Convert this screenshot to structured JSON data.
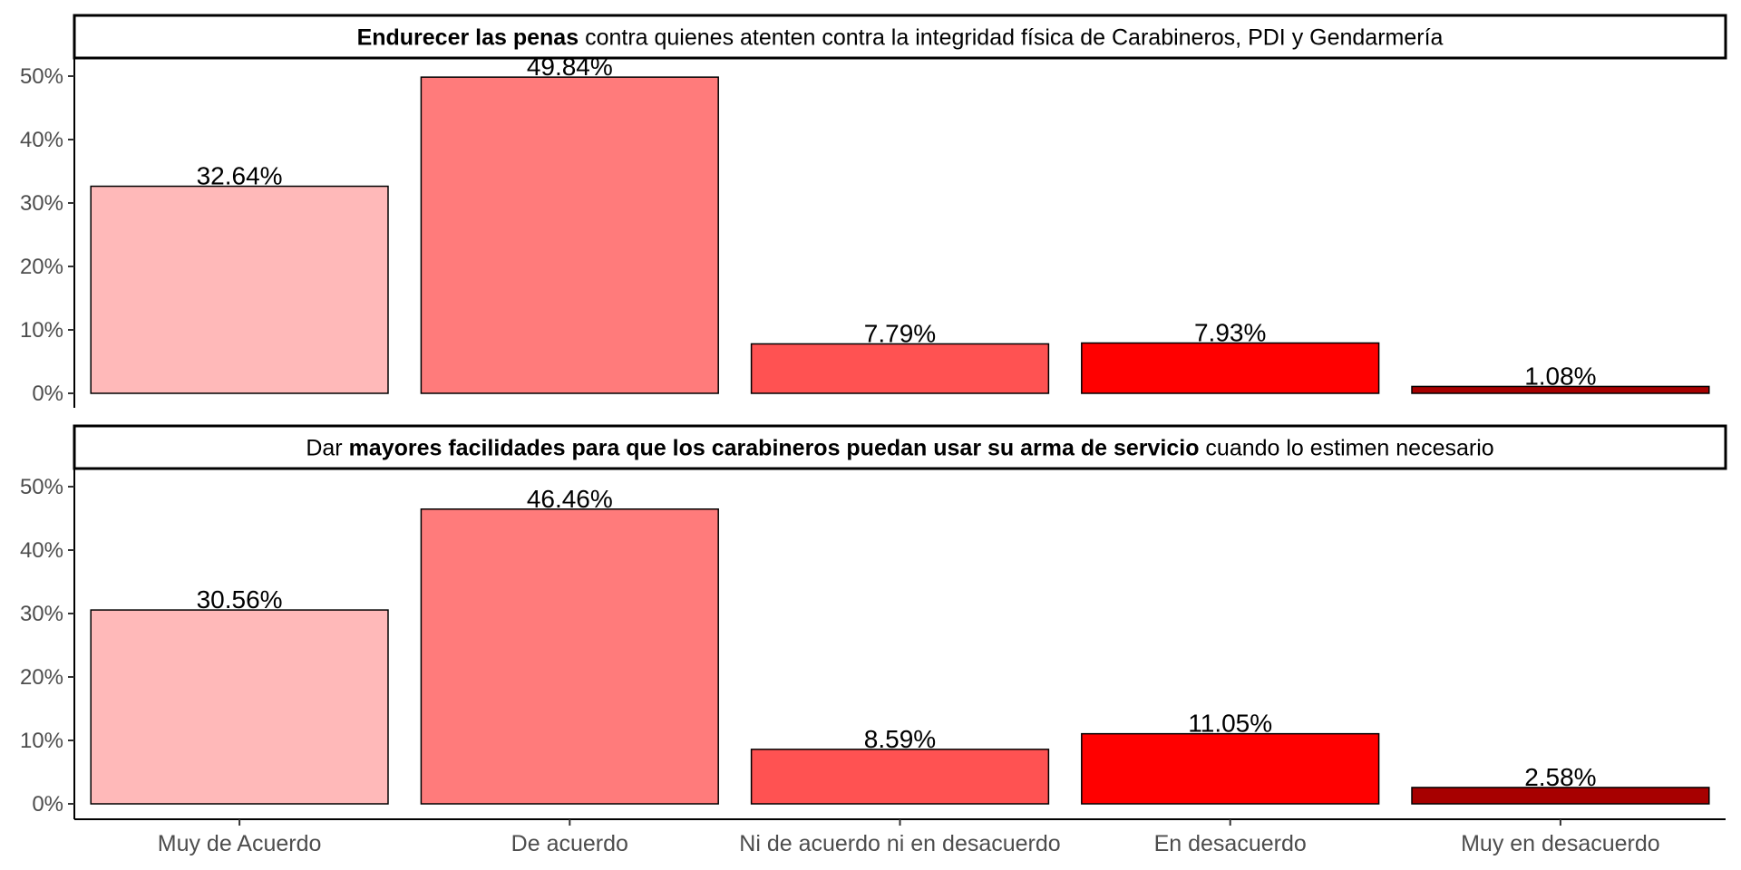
{
  "chart_data": {
    "type": "bar",
    "categories": [
      "Muy de Acuerdo",
      "De acuerdo",
      "Ni de acuerdo ni en desacuerdo",
      "En desacuerdo",
      "Muy en desacuerdo"
    ],
    "colors": [
      "#ffb9b9",
      "#ff7b7b",
      "#ff5252",
      "#ff0000",
      "#a70000"
    ],
    "ylim": [
      0,
      52
    ],
    "yticks": [
      0,
      10,
      20,
      30,
      40,
      50
    ],
    "ytick_labels": [
      "0%",
      "10%",
      "20%",
      "30%",
      "40%",
      "50%"
    ],
    "panels": [
      {
        "title_parts": [
          {
            "text": "Endurecer las penas",
            "bold": true
          },
          {
            "text": " contra quienes atenten contra la integridad física de Carabineros, PDI y Gendarmería",
            "bold": false
          }
        ],
        "values": [
          32.64,
          49.84,
          7.79,
          7.93,
          1.08
        ],
        "labels": [
          "32.64%",
          "49.84%",
          "7.79%",
          "7.93%",
          "1.08%"
        ]
      },
      {
        "title_parts": [
          {
            "text": "Dar ",
            "bold": false
          },
          {
            "text": "mayores facilidades para que los carabineros puedan usar su arma de servicio",
            "bold": true
          },
          {
            "text": " cuando lo estimen necesario",
            "bold": false
          }
        ],
        "values": [
          30.56,
          46.46,
          8.59,
          11.05,
          2.58
        ],
        "labels": [
          "30.56%",
          "46.46%",
          "8.59%",
          "11.05%",
          "2.58%"
        ]
      }
    ]
  }
}
